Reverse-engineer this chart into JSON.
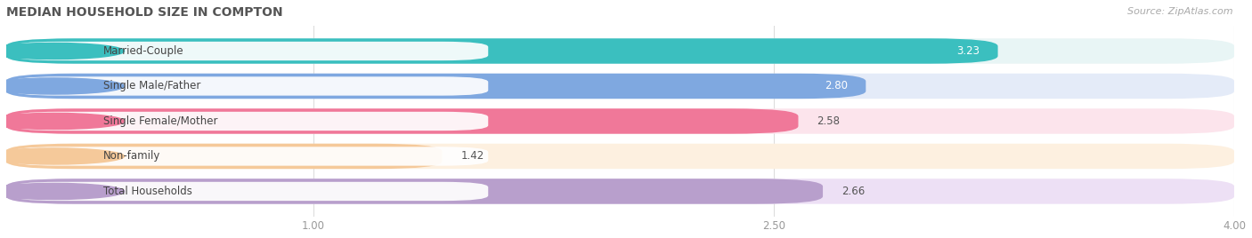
{
  "title": "MEDIAN HOUSEHOLD SIZE IN COMPTON",
  "source": "Source: ZipAtlas.com",
  "categories": [
    "Married-Couple",
    "Single Male/Father",
    "Single Female/Mother",
    "Non-family",
    "Total Households"
  ],
  "values": [
    3.23,
    2.8,
    2.58,
    1.42,
    2.66
  ],
  "bar_colors": [
    "#3BBFBF",
    "#7FA8E0",
    "#F07899",
    "#F5C99A",
    "#B89FCC"
  ],
  "bar_bg_colors": [
    "#E8F5F5",
    "#E4EBF8",
    "#FCE4EC",
    "#FDF0E0",
    "#EDE0F5"
  ],
  "row_bg_color": "#f5f5f5",
  "xlim_start": 0.0,
  "xlim_end": 4.0,
  "xticks": [
    1.0,
    2.5,
    4.0
  ],
  "title_fontsize": 10,
  "source_fontsize": 8,
  "label_fontsize": 8.5,
  "value_fontsize": 8.5,
  "background_color": "#ffffff",
  "between_row_color": "#e8e8e8",
  "value_inside_threshold": 2.8,
  "value_colors_inside": [
    "white",
    "white"
  ],
  "value_colors_outside": "#555555"
}
